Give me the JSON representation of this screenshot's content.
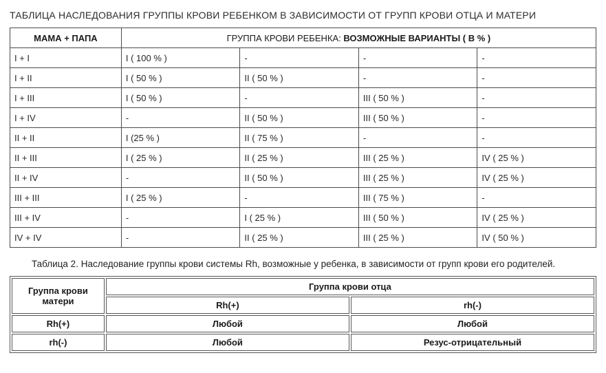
{
  "title": "ТАБЛИЦА НАСЛЕДОВАНИЯ ГРУППЫ КРОВИ РЕБЕНКОМ В ЗАВИСИМОСТИ ОТ ГРУПП КРОВИ ОТЦА И МАТЕРИ",
  "table1": {
    "type": "table",
    "header_parents": "МАМА + ПАПА",
    "header_child_prefix": "ГРУППА КРОВИ РЕБЕНКА: ",
    "header_child_bold": "ВОЗМОЖНЫЕ ВАРИАНТЫ ( В % )",
    "border_color": "#4a4a4a",
    "text_color": "#262626",
    "header_fontweight": "bold",
    "fontsize": 13,
    "column_widths_pct": [
      19,
      20.25,
      20.25,
      20.25,
      20.25
    ],
    "rows": [
      {
        "parents": "I + I",
        "v": [
          "I ( 100 % )",
          "-",
          "-",
          "-"
        ]
      },
      {
        "parents": "I + II",
        "v": [
          "I ( 50 % )",
          "II ( 50 % )",
          "-",
          "-"
        ]
      },
      {
        "parents": "I + III",
        "v": [
          "I ( 50 % )",
          "-",
          "III ( 50 % )",
          "-"
        ]
      },
      {
        "parents": "I + IV",
        "v": [
          "-",
          "II ( 50 % )",
          "III ( 50 % )",
          "-"
        ]
      },
      {
        "parents": "II + II",
        "v": [
          "I (25 % )",
          "II ( 75 % )",
          "-",
          "-"
        ]
      },
      {
        "parents": "II + III",
        "v": [
          "I ( 25 % )",
          "II ( 25 % )",
          "III ( 25 % )",
          "IV ( 25 % )"
        ]
      },
      {
        "parents": "II + IV",
        "v": [
          "-",
          "II ( 50 % )",
          "III ( 25 % )",
          "IV ( 25 % )"
        ]
      },
      {
        "parents": "III + III",
        "v": [
          "I ( 25 % )",
          "-",
          "III ( 75 % )",
          "-"
        ]
      },
      {
        "parents": "III + IV",
        "v": [
          "-",
          "I ( 25 % )",
          "III ( 50 % )",
          "IV ( 25 % )"
        ]
      },
      {
        "parents": "IV + IV",
        "v": [
          "-",
          "II ( 25 % )",
          "III ( 25 % )",
          "IV ( 50 % )"
        ]
      }
    ]
  },
  "caption2": "Таблица 2. Наследование группы крови системы Rh, возможные у ребенка, в зависимости от групп крови его родителей.",
  "table2": {
    "type": "table",
    "border_color": "#555555",
    "fontsize": 13,
    "header_fontweight": "bold",
    "column_widths_pct": [
      16,
      42,
      42
    ],
    "mother_header": "Группа крови матери",
    "father_header": "Группа крови отца",
    "father_cols": [
      "Rh(+)",
      "rh(-)"
    ],
    "rows": [
      {
        "mother": "Rh(+)",
        "cells": [
          "Любой",
          "Любой"
        ]
      },
      {
        "mother": "rh(-)",
        "cells": [
          "Любой",
          "Резус-отрицательный"
        ]
      }
    ]
  }
}
